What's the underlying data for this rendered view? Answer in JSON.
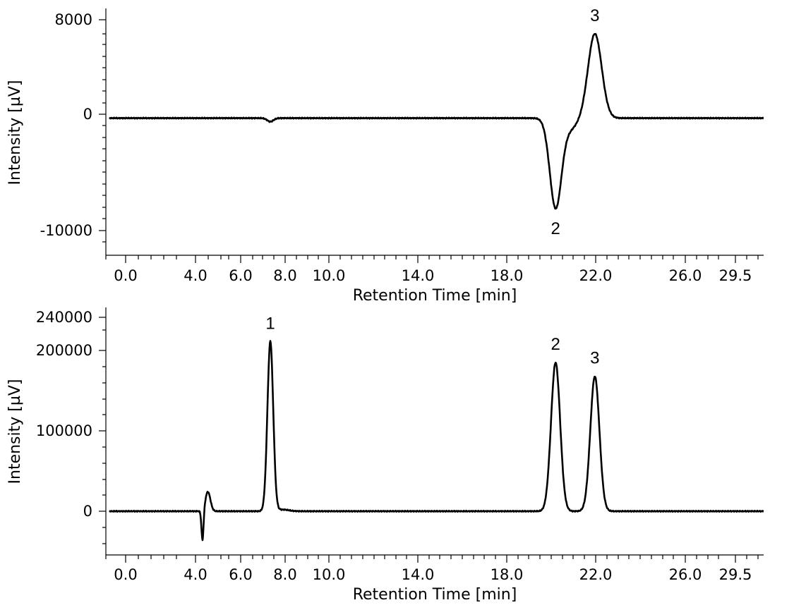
{
  "chart_data": [
    {
      "type": "line",
      "title": "",
      "xlabel": "Retention Time [min]",
      "ylabel": "Intensity [µV]",
      "xlim": [
        -0.8,
        31.0
      ],
      "ylim": [
        -12000,
        9000
      ],
      "x_ticks": [
        "0.0",
        "4.0",
        "6.0",
        "8.0",
        "10.0",
        "14.0",
        "18.0",
        "22.0",
        "26.0",
        "29.5"
      ],
      "y_ticks": [
        "8000",
        "0",
        "-10000"
      ],
      "baseline": -400,
      "peaks": [
        {
          "label": "2",
          "x": 20.8,
          "height": -8000
        },
        {
          "label": "3",
          "x": 22.7,
          "height": 6800
        }
      ]
    },
    {
      "type": "line",
      "title": "",
      "xlabel": "Retention Time [min]",
      "ylabel": "Intensity [µV]",
      "xlim": [
        -0.8,
        31.0
      ],
      "ylim": [
        -50000,
        250000
      ],
      "x_ticks": [
        "0.0",
        "4.0",
        "6.0",
        "8.0",
        "10.0",
        "14.0",
        "18.0",
        "22.0",
        "26.0",
        "29.5"
      ],
      "y_ticks": [
        "240000",
        "200000",
        "100000",
        "0"
      ],
      "baseline": 0,
      "peaks": [
        {
          "label": "1",
          "x": 7.0,
          "height": 210000
        },
        {
          "label": "2",
          "x": 20.8,
          "height": 184000
        },
        {
          "label": "3",
          "x": 22.7,
          "height": 167000
        }
      ]
    }
  ]
}
